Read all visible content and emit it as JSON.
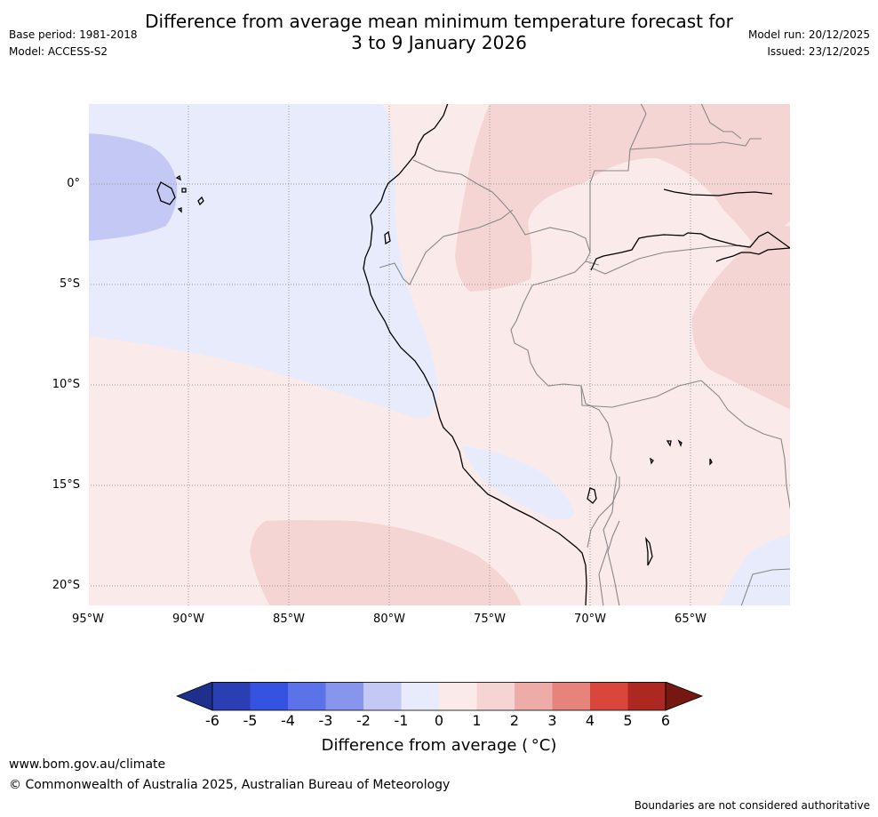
{
  "title": {
    "line1": "Difference from average mean minimum temperature forecast for",
    "line2": "3 to 9 January 2026"
  },
  "meta": {
    "base_period": "Base period: 1981-2018",
    "model": "Model: ACCESS-S2",
    "model_run": "Model run: 20/12/2025",
    "issued": "Issued: 23/12/2025"
  },
  "map": {
    "lat_labels": [
      "0°",
      "5°S",
      "10°S",
      "15°S",
      "20°S"
    ],
    "lon_labels": [
      "95°W",
      "90°W",
      "85°W",
      "80°W",
      "75°W",
      "70°W",
      "65°W"
    ]
  },
  "colorbar": {
    "labels": [
      "-6",
      "-5",
      "-4",
      "-3",
      "-2",
      "-1",
      "0",
      "1",
      "2",
      "3",
      "4",
      "5",
      "6"
    ],
    "colors": [
      "#1e2f8c",
      "#2a3fb4",
      "#3553e0",
      "#5b72e8",
      "#8796ec",
      "#c3c8f4",
      "#e8ebfb",
      "#fbeaea",
      "#f5d5d3",
      "#eeaca8",
      "#e6837b",
      "#d9463c",
      "#ad2820",
      "#761812"
    ],
    "title": "Difference from average ( °C)"
  },
  "footer": {
    "url": "www.bom.gov.au/climate",
    "copyright": "© Commonwealth of Australia 2025, Australian Bureau of Meteorology",
    "disclaimer": "Boundaries are not considered authoritative"
  }
}
